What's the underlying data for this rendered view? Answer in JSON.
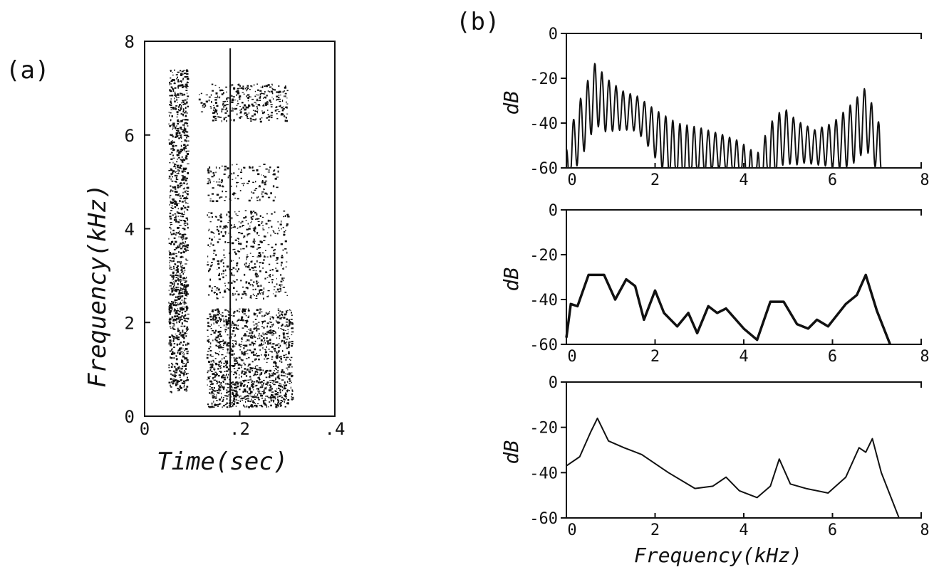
{
  "chart_data": [
    {
      "panel": "(a)",
      "type": "heatmap",
      "xlabel": "Time(sec)",
      "ylabel": "Frequency(kHz)",
      "xlim": [
        0,
        0.4
      ],
      "ylim": [
        0,
        8
      ],
      "x_ticks": [
        "0",
        ".2",
        ".4"
      ],
      "y_ticks": [
        "0",
        "2",
        "4",
        "6",
        "8"
      ],
      "marker_time": 0.18,
      "energy_regions": [
        {
          "t0": 0.05,
          "t1": 0.09,
          "f0": 0.5,
          "f1": 7.4,
          "density": 0.95
        },
        {
          "t0": 0.05,
          "t1": 0.09,
          "f0": 2.0,
          "f1": 3.0,
          "density": 0.6
        },
        {
          "t0": 0.13,
          "t1": 0.31,
          "f0": 0.2,
          "f1": 1.0,
          "density": 1.0
        },
        {
          "t0": 0.13,
          "t1": 0.31,
          "f0": 1.0,
          "f1": 2.3,
          "density": 0.7
        },
        {
          "t0": 0.13,
          "t1": 0.3,
          "f0": 2.5,
          "f1": 4.4,
          "density": 0.35
        },
        {
          "t0": 0.13,
          "t1": 0.28,
          "f0": 4.6,
          "f1": 5.4,
          "density": 0.3
        },
        {
          "t0": 0.14,
          "t1": 0.3,
          "f0": 6.3,
          "f1": 7.1,
          "density": 0.6
        },
        {
          "t0": 0.11,
          "t1": 0.14,
          "f0": 6.5,
          "f1": 6.9,
          "density": 0.4
        }
      ]
    },
    {
      "panel": "(b)",
      "type": "line",
      "xlabel": "Frequency(kHz)",
      "ylabel": "dB",
      "xlim": [
        0,
        8
      ],
      "ylim": [
        -60,
        0
      ],
      "x_ticks": [
        "0",
        "2",
        "4",
        "6",
        "8"
      ],
      "y_ticks": [
        "0",
        "-20",
        "-40",
        "-60"
      ],
      "subplots": [
        {
          "kind": "harmonic",
          "envelope": [
            [
              0.0,
              -52
            ],
            [
              0.2,
              -35
            ],
            [
              0.5,
              -20
            ],
            [
              0.65,
              -13
            ],
            [
              0.9,
              -20
            ],
            [
              1.3,
              -26
            ],
            [
              1.6,
              -28
            ],
            [
              2.0,
              -34
            ],
            [
              2.5,
              -40
            ],
            [
              3.0,
              -42
            ],
            [
              3.5,
              -45
            ],
            [
              3.9,
              -48
            ],
            [
              4.3,
              -54
            ],
            [
              4.6,
              -40
            ],
            [
              4.9,
              -33
            ],
            [
              5.2,
              -39
            ],
            [
              5.6,
              -43
            ],
            [
              6.0,
              -40
            ],
            [
              6.4,
              -32
            ],
            [
              6.75,
              -24
            ],
            [
              7.05,
              -40
            ],
            [
              7.15,
              -58
            ],
            [
              7.4,
              -60
            ]
          ],
          "f0_khz": 0.16
        },
        {
          "kind": "smooth",
          "points": [
            [
              0.0,
              -57
            ],
            [
              0.1,
              -42
            ],
            [
              0.25,
              -43
            ],
            [
              0.5,
              -29
            ],
            [
              0.85,
              -29
            ],
            [
              1.1,
              -40
            ],
            [
              1.35,
              -31
            ],
            [
              1.55,
              -34
            ],
            [
              1.75,
              -49
            ],
            [
              2.0,
              -36
            ],
            [
              2.2,
              -46
            ],
            [
              2.5,
              -52
            ],
            [
              2.75,
              -46
            ],
            [
              2.95,
              -55
            ],
            [
              3.2,
              -43
            ],
            [
              3.4,
              -46
            ],
            [
              3.6,
              -44
            ],
            [
              4.0,
              -53
            ],
            [
              4.3,
              -58
            ],
            [
              4.6,
              -41
            ],
            [
              4.9,
              -41
            ],
            [
              5.2,
              -51
            ],
            [
              5.45,
              -53
            ],
            [
              5.65,
              -49
            ],
            [
              5.9,
              -52
            ],
            [
              6.3,
              -42
            ],
            [
              6.55,
              -38
            ],
            [
              6.75,
              -29
            ],
            [
              7.0,
              -45
            ],
            [
              7.3,
              -60
            ]
          ]
        },
        {
          "kind": "smooth",
          "points": [
            [
              0.0,
              -37
            ],
            [
              0.3,
              -33
            ],
            [
              0.55,
              -22
            ],
            [
              0.7,
              -16
            ],
            [
              0.95,
              -26
            ],
            [
              1.3,
              -29
            ],
            [
              1.7,
              -32
            ],
            [
              2.3,
              -40
            ],
            [
              2.9,
              -47
            ],
            [
              3.3,
              -46
            ],
            [
              3.6,
              -42
            ],
            [
              3.9,
              -48
            ],
            [
              4.3,
              -51
            ],
            [
              4.6,
              -46
            ],
            [
              4.8,
              -34
            ],
            [
              5.05,
              -45
            ],
            [
              5.4,
              -47
            ],
            [
              5.9,
              -49
            ],
            [
              6.3,
              -42
            ],
            [
              6.6,
              -29
            ],
            [
              6.75,
              -31
            ],
            [
              6.9,
              -25
            ],
            [
              7.1,
              -40
            ],
            [
              7.5,
              -60
            ]
          ]
        }
      ]
    }
  ]
}
